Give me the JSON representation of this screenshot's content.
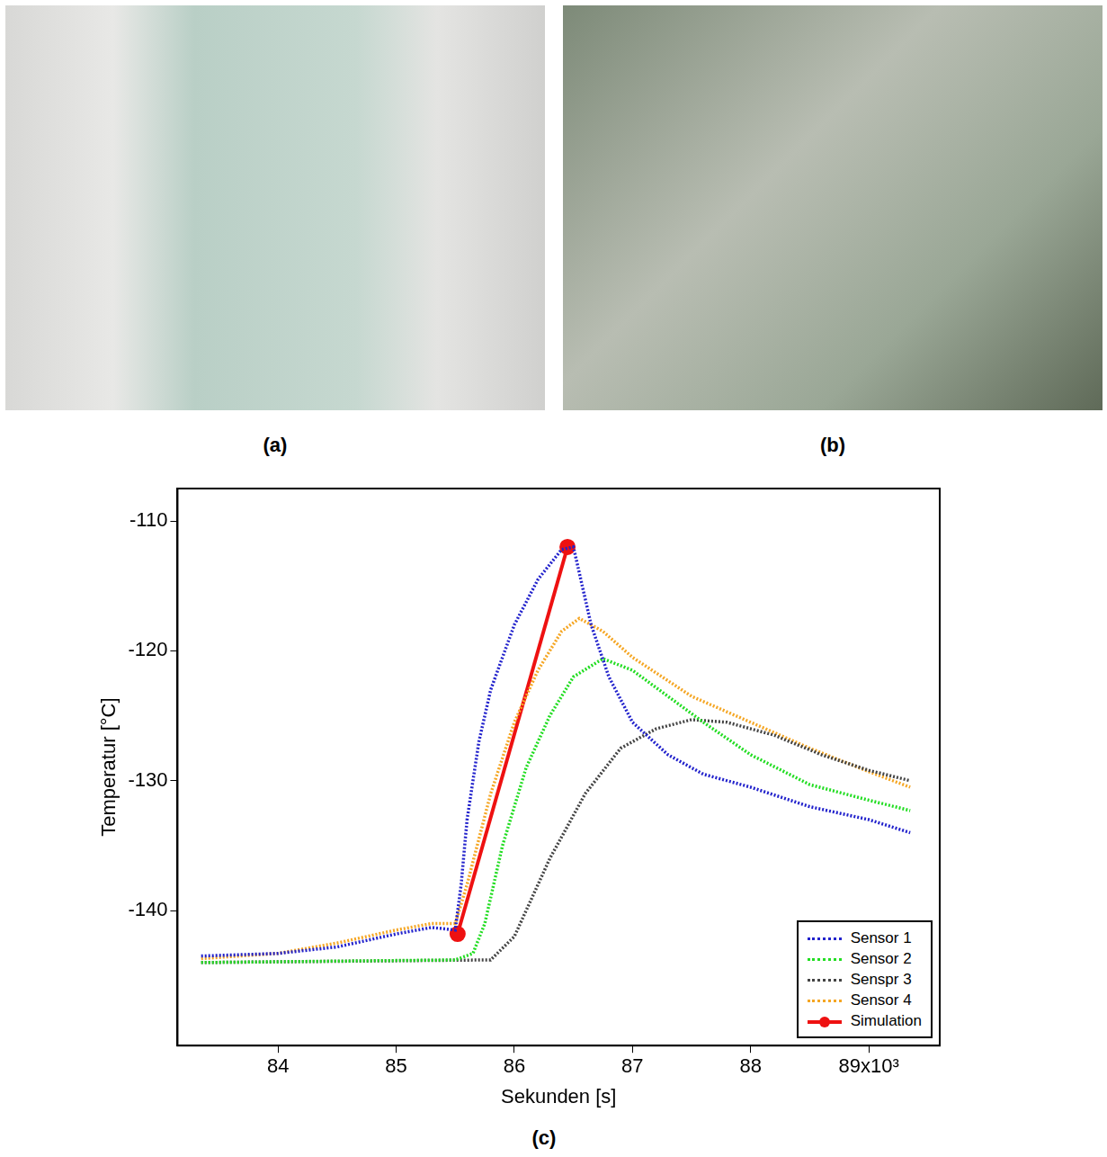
{
  "photos": [
    {
      "label": "(a)"
    },
    {
      "label": "(b)"
    }
  ],
  "chart_data": {
    "label": "(c)",
    "type": "line",
    "x_label": "Sekunden [s]",
    "y_label": "Temperatur [°C]",
    "xlim": [
      83.15,
      89.6
    ],
    "xticks": [
      84,
      85,
      86,
      87,
      88,
      {
        "value": 89,
        "label": "89x10³"
      }
    ],
    "ylim": [
      -150.4,
      -107.5
    ],
    "yticks": [
      -140,
      -130,
      -120,
      -110
    ],
    "grid": false,
    "legend": "lower right",
    "series": [
      {
        "name": "Sensor 1",
        "color": "#2222cc",
        "line_style": "dotted",
        "x": [
          83.35,
          84,
          84.5,
          85,
          85.3,
          85.5,
          85.55,
          85.6,
          85.7,
          85.8,
          86.0,
          86.2,
          86.4,
          86.5,
          86.55,
          86.65,
          86.8,
          87.0,
          87.3,
          87.6,
          88,
          88.5,
          89,
          89.35
        ],
        "values": [
          -143.5,
          -143.3,
          -142.8,
          -141.8,
          -141.3,
          -141.5,
          -138,
          -133,
          -127,
          -123,
          -118,
          -114.5,
          -112.2,
          -112,
          -114,
          -118,
          -122,
          -125.5,
          -128,
          -129.5,
          -130.5,
          -132,
          -133,
          -134
        ]
      },
      {
        "name": "Sensor 2",
        "color": "#22dd22",
        "line_style": "dotted",
        "x": [
          83.35,
          85.5,
          85.65,
          85.75,
          85.9,
          86.1,
          86.3,
          86.5,
          86.75,
          87.0,
          87.3,
          87.6,
          88,
          88.5,
          89,
          89.35
        ],
        "values": [
          -144,
          -143.8,
          -143.3,
          -141,
          -135,
          -129,
          -125,
          -122,
          -120.6,
          -121.5,
          -123.5,
          -125.5,
          -128,
          -130.3,
          -131.5,
          -132.3
        ]
      },
      {
        "name": "Senspr 3",
        "color": "#444444",
        "line_style": "dotted",
        "x": [
          83.35,
          85.8,
          86.0,
          86.3,
          86.6,
          86.9,
          87.2,
          87.5,
          87.8,
          88.2,
          88.6,
          89,
          89.35
        ],
        "values": [
          -144,
          -143.8,
          -142,
          -136,
          -131,
          -127.5,
          -126,
          -125.3,
          -125.5,
          -126.5,
          -128,
          -129.2,
          -130
        ]
      },
      {
        "name": "Sensor 4",
        "color": "#f5a623",
        "line_style": "dotted",
        "x": [
          83.35,
          84,
          84.5,
          85,
          85.3,
          85.5,
          85.6,
          85.8,
          86.0,
          86.2,
          86.4,
          86.55,
          86.75,
          87.0,
          87.5,
          88,
          88.5,
          89,
          89.35
        ],
        "values": [
          -143.7,
          -143.3,
          -142.5,
          -141.5,
          -141,
          -141,
          -138,
          -131,
          -125.5,
          -121.5,
          -118.5,
          -117.5,
          -118.5,
          -120.5,
          -123.5,
          -125.5,
          -127.5,
          -129.3,
          -130.5
        ]
      },
      {
        "name": "Simulation",
        "color": "#ee1111",
        "line_style": "solid",
        "marker": "circle",
        "x": [
          85.52,
          86.45
        ],
        "values": [
          -141.8,
          -112
        ]
      }
    ]
  }
}
